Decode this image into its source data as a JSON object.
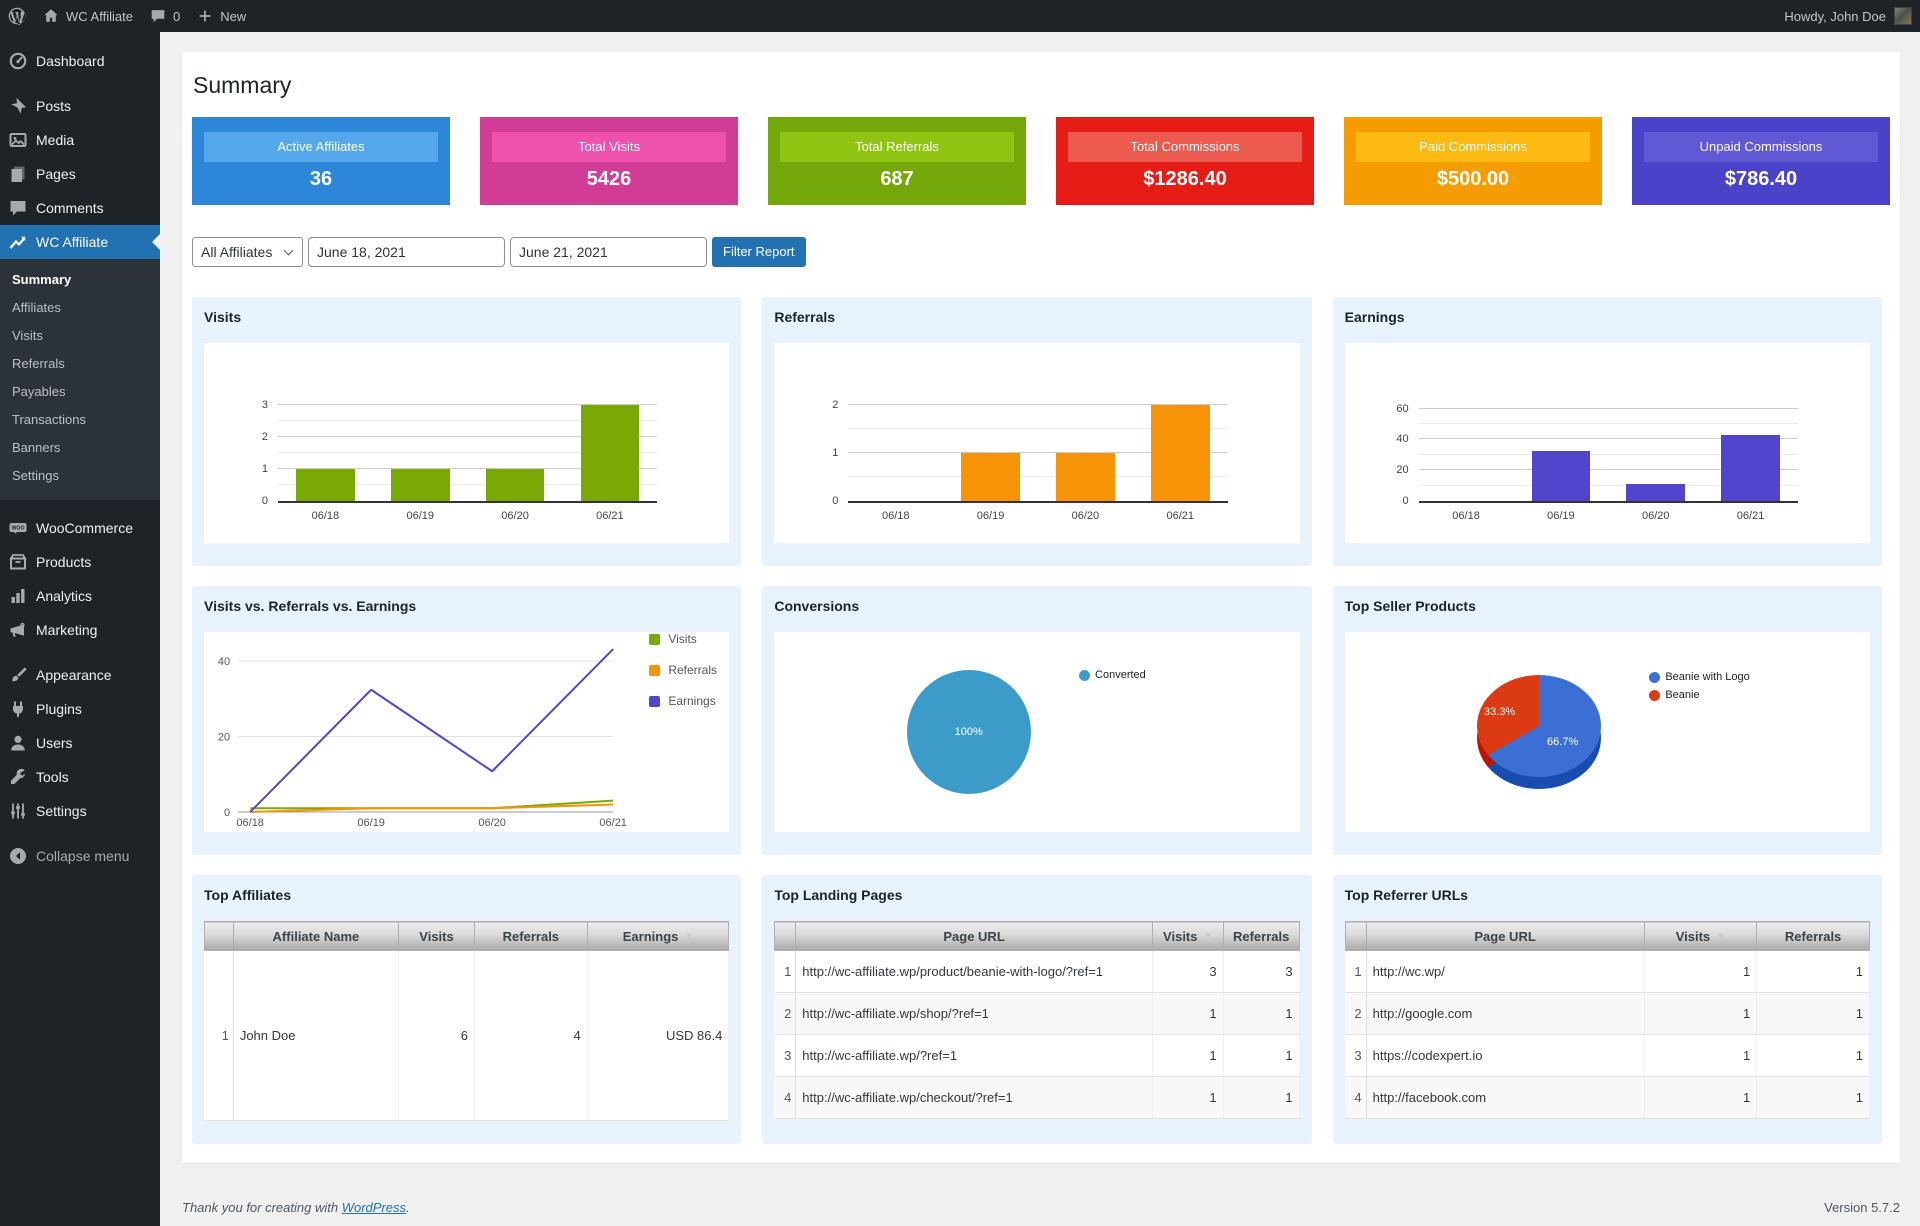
{
  "admin_bar": {
    "site_name": "WC Affiliate",
    "comments_count": "0",
    "new_label": "New",
    "howdy": "Howdy, John Doe"
  },
  "sidebar": {
    "items": [
      {
        "label": "Dashboard",
        "icon": "dashboard-icon"
      },
      {
        "label": "Posts",
        "icon": "pushpin-icon",
        "gap": true
      },
      {
        "label": "Media",
        "icon": "media-icon"
      },
      {
        "label": "Pages",
        "icon": "pages-icon"
      },
      {
        "label": "Comments",
        "icon": "comment-icon"
      },
      {
        "label": "WC Affiliate",
        "icon": "chart-line-icon",
        "active": true
      },
      {
        "label": "Summary",
        "sub": true,
        "active_sub": true
      },
      {
        "label": "Affiliates",
        "sub": true
      },
      {
        "label": "Visits",
        "sub": true
      },
      {
        "label": "Referrals",
        "sub": true
      },
      {
        "label": "Payables",
        "sub": true
      },
      {
        "label": "Transactions",
        "sub": true
      },
      {
        "label": "Banners",
        "sub": true
      },
      {
        "label": "Settings",
        "sub": true
      },
      {
        "label": "WooCommerce",
        "icon": "woocommerce-icon",
        "gap": true
      },
      {
        "label": "Products",
        "icon": "box-icon"
      },
      {
        "label": "Analytics",
        "icon": "bar-chart-icon"
      },
      {
        "label": "Marketing",
        "icon": "megaphone-icon"
      },
      {
        "label": "Appearance",
        "icon": "brush-icon",
        "gap": true
      },
      {
        "label": "Plugins",
        "icon": "plug-icon"
      },
      {
        "label": "Users",
        "icon": "user-icon"
      },
      {
        "label": "Tools",
        "icon": "wrench-icon"
      },
      {
        "label": "Settings",
        "icon": "sliders-icon"
      },
      {
        "label": "Collapse menu",
        "icon": "collapse-icon",
        "gap": true,
        "dim": true
      }
    ]
  },
  "page": {
    "title": "Summary"
  },
  "stat_cards": [
    {
      "label": "Active Affiliates",
      "value": "36",
      "bg": "#2d86d8",
      "band": "#54a7ea"
    },
    {
      "label": "Total Visits",
      "value": "5426",
      "bg": "#d13c96",
      "band": "#ef51ae"
    },
    {
      "label": "Total Referrals",
      "value": "687",
      "bg": "#74a70a",
      "band": "#8fc413"
    },
    {
      "label": "Total Commissions",
      "value": "$1286.40",
      "bg": "#e61c16",
      "band": "#ec5a4f"
    },
    {
      "label": "Paid Commissions",
      "value": "$500.00",
      "bg": "#f59c00",
      "band": "#fcba12"
    },
    {
      "label": "Unpaid Commissions",
      "value": "$786.40",
      "bg": "#4a42c8",
      "band": "#6158d6"
    }
  ],
  "filters": {
    "affiliate_select": "All Affiliates",
    "date_from": "June 18, 2021",
    "date_to": "June 21, 2021",
    "button_label": "Filter Report"
  },
  "chart_data": [
    {
      "id": "visits",
      "type": "bar",
      "title": "Visits",
      "categories": [
        "06/18",
        "06/19",
        "06/20",
        "06/21"
      ],
      "values": [
        1,
        1,
        1,
        3
      ],
      "color": "#7aa805",
      "yticks": [
        0,
        1,
        2,
        3
      ],
      "minor_gridlines": [
        0.5,
        1.5,
        2.5
      ],
      "ylim": [
        0,
        3.75
      ]
    },
    {
      "id": "referrals",
      "type": "bar",
      "title": "Referrals",
      "categories": [
        "06/18",
        "06/19",
        "06/20",
        "06/21"
      ],
      "values": [
        0,
        1,
        1,
        2
      ],
      "color": "#f79306",
      "yticks": [
        0,
        1,
        2
      ],
      "minor_gridlines": [
        0.5,
        1.5
      ],
      "ylim": [
        0,
        2.5
      ]
    },
    {
      "id": "earnings",
      "type": "bar",
      "title": "Earnings",
      "categories": [
        "06/18",
        "06/19",
        "06/20",
        "06/21"
      ],
      "values": [
        0,
        32.4,
        10.8,
        43.2
      ],
      "color": "#5145cd",
      "yticks": [
        0,
        20,
        40,
        60
      ],
      "minor_gridlines": [
        10,
        30,
        50
      ],
      "ylim": [
        0,
        78
      ]
    },
    {
      "id": "combined",
      "type": "line",
      "title": "Visits vs. Referrals vs. Earnings",
      "categories": [
        "06/18",
        "06/19",
        "06/20",
        "06/21"
      ],
      "series": [
        {
          "name": "Visits",
          "color": "#7aa805",
          "values": [
            1,
            1,
            1,
            3
          ]
        },
        {
          "name": "Referrals",
          "color": "#f79306",
          "values": [
            0,
            1,
            1,
            2
          ]
        },
        {
          "name": "Earnings",
          "color": "#5145cd",
          "values": [
            0,
            32.4,
            10.8,
            43.2
          ]
        }
      ],
      "yticks": [
        0,
        20,
        40
      ],
      "ylim": [
        0,
        44
      ],
      "legend_position": "right",
      "grid": true
    },
    {
      "id": "conversions",
      "type": "pie",
      "title": "Conversions",
      "slices": [
        {
          "label": "Converted",
          "value": 100,
          "pct_label": "100%",
          "color": "#3d9bc9"
        }
      ],
      "legend_position": "right"
    },
    {
      "id": "top_sellers",
      "type": "pie",
      "title": "Top Seller Products",
      "three_d": true,
      "slices": [
        {
          "label": "Beanie with Logo",
          "value": 66.7,
          "pct_label": "66.7%",
          "color": "#3b6fd4"
        },
        {
          "label": "Beanie",
          "value": 33.3,
          "pct_label": "33.3%",
          "color": "#dc3a12"
        }
      ],
      "legend_position": "right"
    }
  ],
  "tables": {
    "top_affiliates": {
      "title": "Top Affiliates",
      "columns": [
        "",
        "Affiliate Name",
        "Visits",
        "Referrals",
        "Earnings"
      ],
      "sorted_column": "Earnings",
      "rows": [
        [
          "1",
          "John Doe",
          "6",
          "4",
          "USD 86.4"
        ]
      ]
    },
    "top_landing_pages": {
      "title": "Top Landing Pages",
      "columns": [
        "",
        "Page URL",
        "Visits",
        "Referrals"
      ],
      "sorted_column": "Visits",
      "rows": [
        [
          "1",
          "http://wc-affiliate.wp/product/beanie-with-logo/?ref=1",
          "3",
          "3"
        ],
        [
          "2",
          "http://wc-affiliate.wp/shop/?ref=1",
          "1",
          "1"
        ],
        [
          "3",
          "http://wc-affiliate.wp/?ref=1",
          "1",
          "1"
        ],
        [
          "4",
          "http://wc-affiliate.wp/checkout/?ref=1",
          "1",
          "1"
        ]
      ]
    },
    "top_referrer_urls": {
      "title": "Top Referrer URLs",
      "columns": [
        "",
        "Page URL",
        "Visits",
        "Referrals"
      ],
      "sorted_column": "Visits",
      "rows": [
        [
          "1",
          "http://wc.wp/",
          "1",
          "1"
        ],
        [
          "2",
          "http://google.com",
          "1",
          "1"
        ],
        [
          "3",
          "https://codexpert.io",
          "1",
          "1"
        ],
        [
          "4",
          "http://facebook.com",
          "1",
          "1"
        ]
      ]
    }
  },
  "footer": {
    "thanks_prefix": "Thank you for creating with ",
    "link_label": "WordPress",
    "thanks_suffix": ".",
    "version": "Version 5.7.2"
  }
}
